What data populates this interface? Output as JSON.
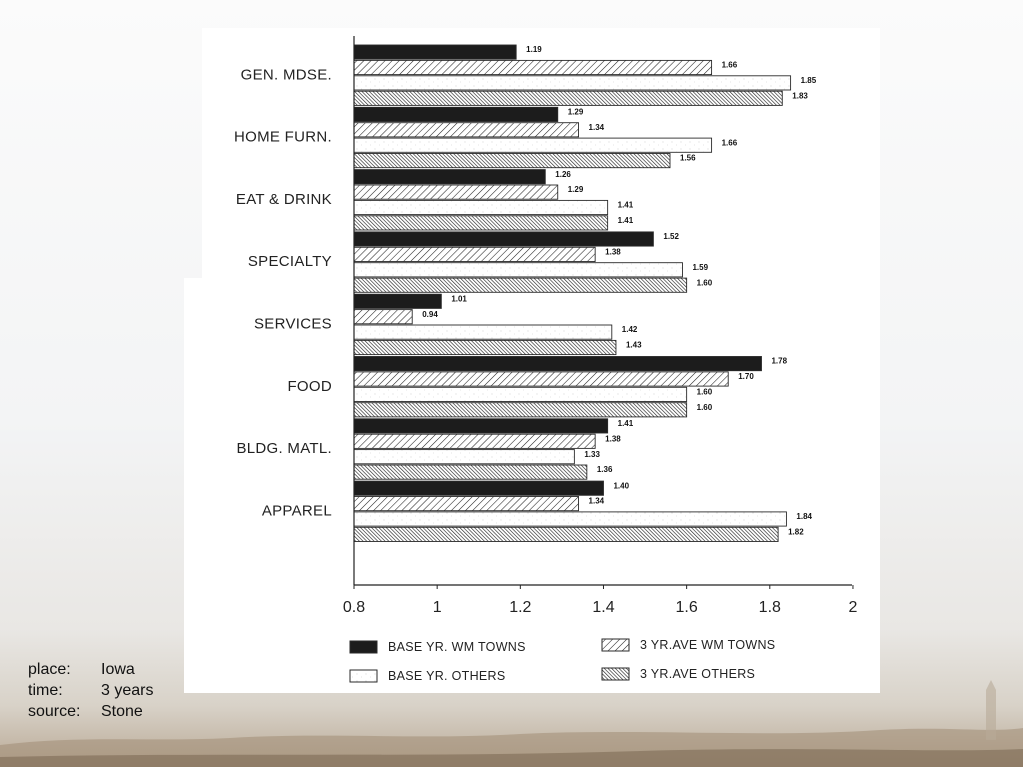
{
  "chart_data": {
    "type": "bar",
    "orientation": "horizontal",
    "categories": [
      "GEN. MDSE.",
      "HOME FURN.",
      "EAT & DRINK",
      "SPECIALTY",
      "SERVICES",
      "FOOD",
      "BLDG. MATL.",
      "APPAREL"
    ],
    "series": [
      {
        "name": "BASE YR. WM TOWNS",
        "fill": "solid",
        "values": [
          1.19,
          1.29,
          1.26,
          1.52,
          1.01,
          1.78,
          1.41,
          1.4
        ],
        "value_labels": [
          "1.19",
          "1.29",
          "1.26",
          "1.52",
          "1.01",
          "1.78",
          "1.41",
          "1.40"
        ]
      },
      {
        "name": "3 YR.AVE WM TOWNS",
        "fill": "light-diagonal-hatch",
        "values": [
          1.66,
          1.34,
          1.29,
          1.38,
          0.94,
          1.7,
          1.38,
          1.34
        ],
        "value_labels": [
          "1.66",
          "1.34",
          "1.29",
          "1.38",
          "0.94",
          "1.70",
          "1.38",
          "1.34"
        ]
      },
      {
        "name": "BASE YR. OTHERS",
        "fill": "open",
        "values": [
          1.85,
          1.66,
          1.41,
          1.59,
          1.42,
          1.6,
          1.33,
          1.84
        ],
        "value_labels": [
          "1.85",
          "1.66",
          "1.41",
          "1.59",
          "1.42",
          "1.60",
          "1.33",
          "1.84"
        ]
      },
      {
        "name": "3 YR.AVE OTHERS",
        "fill": "dense-diagonal-hatch",
        "values": [
          1.83,
          1.56,
          1.41,
          1.6,
          1.43,
          1.6,
          1.36,
          1.82
        ],
        "value_labels": [
          "1.83",
          "1.56",
          "1.41",
          "1.60",
          "1.43",
          "1.60",
          "1.36",
          "1.82"
        ]
      }
    ],
    "xlim": [
      0.8,
      2
    ],
    "xticks": [
      "0.8",
      "1",
      "1.2",
      "1.4",
      "1.6",
      "1.8",
      "2"
    ],
    "xlabel": "",
    "ylabel": "",
    "title": "",
    "grid": false,
    "legend_position": "bottom"
  },
  "meta": {
    "place_label": "place:",
    "place_value": "Iowa",
    "time_label": "time:",
    "time_value": "3 years",
    "source_label": "source:",
    "source_value": "Stone"
  },
  "colors": {
    "bar_solid": "#1c1c1c",
    "bar_stroke": "#2a2a2a",
    "panel": "#ffffff",
    "text": "#222222"
  }
}
